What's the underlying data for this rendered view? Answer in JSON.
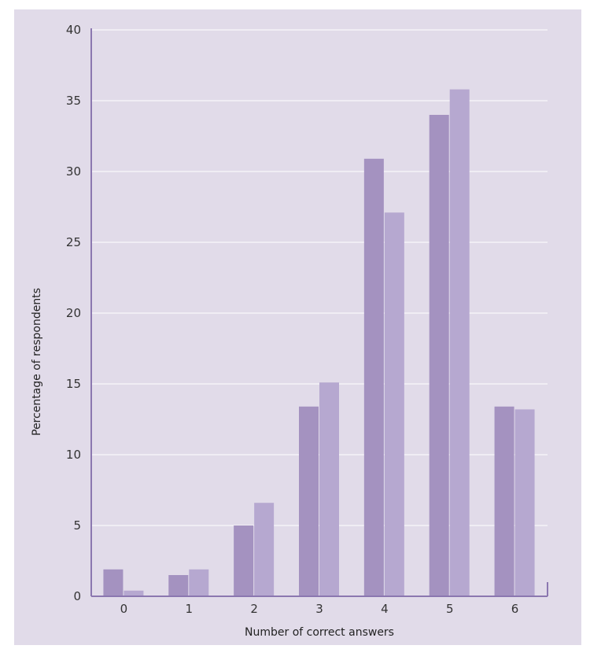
{
  "chart_data": {
    "type": "bar",
    "categories": [
      "0",
      "1",
      "2",
      "3",
      "4",
      "5",
      "6"
    ],
    "series": [
      {
        "values": [
          1.9,
          1.5,
          5.0,
          13.4,
          30.9,
          34.0,
          13.4
        ]
      },
      {
        "values": [
          0.4,
          1.9,
          6.6,
          15.1,
          27.1,
          35.8,
          13.2
        ]
      }
    ],
    "xlabel": "Number of correct answers",
    "ylabel": "Percentage of respondents",
    "ylim": [
      0,
      40
    ],
    "yticks": [
      0,
      5,
      10,
      15,
      20,
      25,
      30,
      35,
      40
    ],
    "grid": true
  },
  "colors": {
    "background": "#e1dbe9",
    "series": [
      "#a492c0",
      "#b6a8d0"
    ],
    "grid": "#ffffff",
    "axis": "#8b77b0"
  }
}
